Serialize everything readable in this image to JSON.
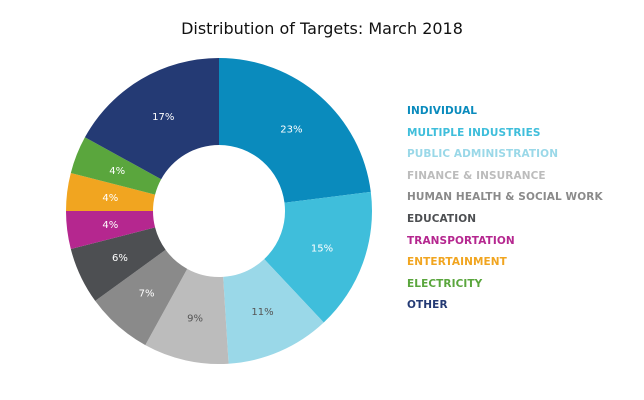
{
  "chart_data": {
    "type": "pie",
    "title": "Distribution of Targets: March 2018",
    "categories": [
      "INDIVIDUAL",
      "MULTIPLE INDUSTRIES",
      "PUBLIC ADMINISTRATION",
      "FINANCE & INSURANCE",
      "HUMAN HEALTH & SOCIAL WORK",
      "EDUCATION",
      "TRANSPORTATION",
      "ENTERTAINMENT",
      "ELECTRICITY",
      "OTHER"
    ],
    "values": [
      23,
      15,
      11,
      9,
      7,
      6,
      4,
      4,
      4,
      17
    ],
    "labels": [
      "23%",
      "15%",
      "11%",
      "9%",
      "7%",
      "6%",
      "4%",
      "4%",
      "4%",
      "17%"
    ],
    "colors": [
      "#0a8bbd",
      "#3fbedb",
      "#9ad8e8",
      "#bcbcbc",
      "#8a8a8a",
      "#4d4f52",
      "#b5278f",
      "#f1a520",
      "#5aa63d",
      "#243a74"
    ],
    "legend_position": "right",
    "donut": true
  }
}
